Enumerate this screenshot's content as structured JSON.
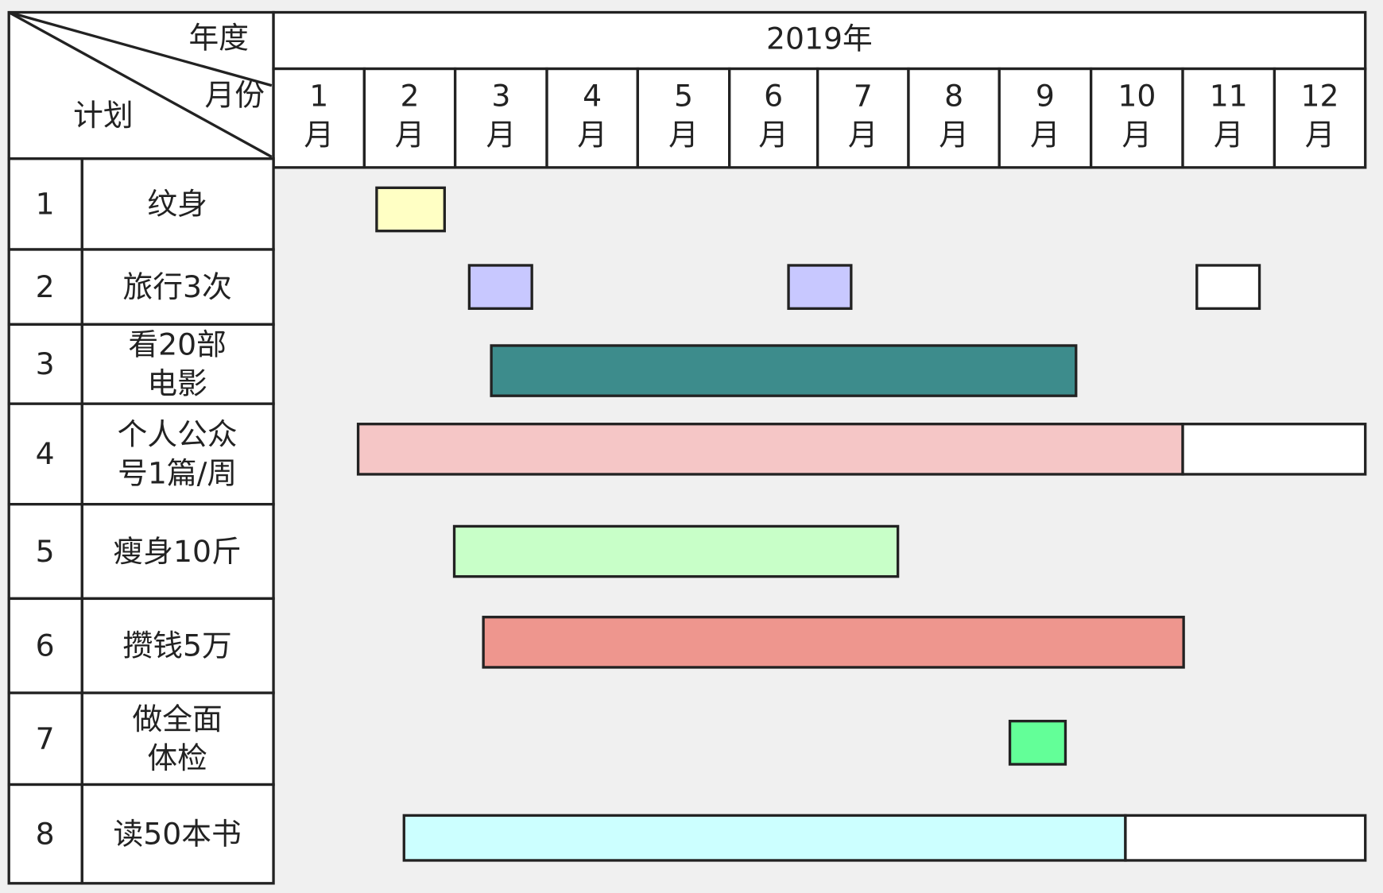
{
  "header": {
    "year_label": "年度",
    "month_label": "月份",
    "plan_label": "计划",
    "year": "2019年",
    "months": [
      [
        "1",
        "月"
      ],
      [
        "2",
        "月"
      ],
      [
        "3",
        "月"
      ],
      [
        "4",
        "月"
      ],
      [
        "5",
        "月"
      ],
      [
        "6",
        "月"
      ],
      [
        "7",
        "月"
      ],
      [
        "8",
        "月"
      ],
      [
        "9",
        "月"
      ],
      [
        "10",
        "月"
      ],
      [
        "11",
        "月"
      ],
      [
        "12",
        "月"
      ]
    ]
  },
  "rows": [
    {
      "no": "1",
      "task": [
        "纹身"
      ]
    },
    {
      "no": "2",
      "task": [
        "旅行3次"
      ]
    },
    {
      "no": "3",
      "task": [
        "看20部",
        "电影"
      ]
    },
    {
      "no": "4",
      "task": [
        "个人公众",
        "号1篇/周"
      ]
    },
    {
      "no": "5",
      "task": [
        "瘦身10斤"
      ]
    },
    {
      "no": "6",
      "task": [
        "攒钱5万"
      ]
    },
    {
      "no": "7",
      "task": [
        "做全面",
        "体检"
      ]
    },
    {
      "no": "8",
      "task": [
        "读50本书"
      ]
    }
  ]
}
